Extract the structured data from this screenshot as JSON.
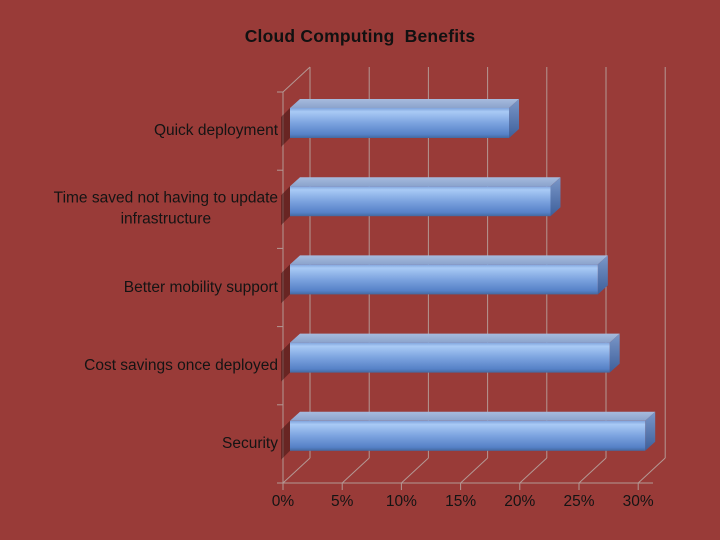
{
  "title": "Cloud Computing  Benefits",
  "colors": {
    "background": "#993B38",
    "text": "#141414",
    "gridline": "#B49894",
    "bar_front_light": "#A9CAF5",
    "bar_front_dark": "#44689F",
    "bar_top_face": "#A6BBDE",
    "bar_side_face": "#3D5F9B",
    "bar_shadow": "rgba(56,15,13,0.5)"
  },
  "chart_data": {
    "type": "bar",
    "orientation": "horizontal",
    "style": "3d",
    "title": "Cloud Computing  Benefits",
    "categories": [
      "Quick deployment",
      "Time saved not having to update\ninfrastructure",
      "Better mobility support",
      "Cost savings once deployed",
      "Security"
    ],
    "values": [
      18.5,
      22,
      26,
      27,
      30
    ],
    "unit": "%",
    "x_ticks": [
      "0%",
      "5%",
      "10%",
      "15%",
      "20%",
      "25%",
      "30%"
    ],
    "x_tick_values": [
      0,
      5,
      10,
      15,
      20,
      25,
      30
    ],
    "xlim": [
      0,
      30
    ],
    "grid": true,
    "legend": false
  }
}
